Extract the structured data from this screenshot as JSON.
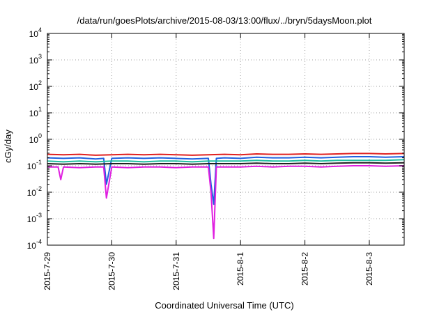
{
  "chart_data": {
    "type": "line",
    "title": "/data/run/goesPlots/archive/2015-08-03/13:00/flux/../bryn/5daysMoon.plot",
    "xlabel": "Coordinated Universal Time (UTC)",
    "ylabel": "cGy/day",
    "yscale": "log",
    "ylim": [
      0.0001,
      10000
    ],
    "xlim": [
      "2015-07-29 00:00",
      "2015-08-03 13:00"
    ],
    "yticks": [
      {
        "value": 0.0001,
        "base": "10",
        "exp": "-4"
      },
      {
        "value": 0.001,
        "base": "10",
        "exp": "-3"
      },
      {
        "value": 0.01,
        "base": "10",
        "exp": "-2"
      },
      {
        "value": 0.1,
        "base": "10",
        "exp": "-1"
      },
      {
        "value": 1,
        "base": "10",
        "exp": "0"
      },
      {
        "value": 10,
        "base": "10",
        "exp": "1"
      },
      {
        "value": 100,
        "base": "10",
        "exp": "2"
      },
      {
        "value": 1000,
        "base": "10",
        "exp": "3"
      },
      {
        "value": 10000,
        "base": "10",
        "exp": "4"
      }
    ],
    "xticks": [
      {
        "value": "2015-07-29 00:00",
        "label": "2015-7-29"
      },
      {
        "value": "2015-07-30 00:00",
        "label": "2015-7-30"
      },
      {
        "value": "2015-07-31 00:00",
        "label": "2015-7-31"
      },
      {
        "value": "2015-08-01 00:00",
        "label": "2015-8-1"
      },
      {
        "value": "2015-08-02 00:00",
        "label": "2015-8-2"
      },
      {
        "value": "2015-08-03 00:00",
        "label": "2015-8-3"
      }
    ],
    "grid": true,
    "legend": "none",
    "series": [
      {
        "color": "#e02020",
        "x": [
          "2015-07-29 00:00",
          "2015-07-29 06:00",
          "2015-07-29 12:00",
          "2015-07-29 18:00",
          "2015-07-30 00:00",
          "2015-07-30 06:00",
          "2015-07-30 12:00",
          "2015-07-30 18:00",
          "2015-07-31 00:00",
          "2015-07-31 06:00",
          "2015-07-31 12:00",
          "2015-07-31 18:00",
          "2015-08-01 00:00",
          "2015-08-01 06:00",
          "2015-08-01 12:00",
          "2015-08-01 18:00",
          "2015-08-02 00:00",
          "2015-08-02 06:00",
          "2015-08-02 12:00",
          "2015-08-02 18:00",
          "2015-08-03 00:00",
          "2015-08-03 06:00",
          "2015-08-03 13:00"
        ],
        "y": [
          0.27,
          0.26,
          0.27,
          0.25,
          0.26,
          0.27,
          0.26,
          0.27,
          0.26,
          0.25,
          0.26,
          0.27,
          0.26,
          0.28,
          0.27,
          0.27,
          0.28,
          0.27,
          0.28,
          0.29,
          0.29,
          0.28,
          0.29
        ]
      },
      {
        "color": "#2060e0",
        "x": [
          "2015-07-29 00:00",
          "2015-07-29 06:00",
          "2015-07-29 12:00",
          "2015-07-29 18:00",
          "2015-07-29 21:00",
          "2015-07-29 22:00",
          "2015-07-30 00:00",
          "2015-07-30 06:00",
          "2015-07-30 12:00",
          "2015-07-30 18:00",
          "2015-07-31 00:00",
          "2015-07-31 06:00",
          "2015-07-31 12:00",
          "2015-07-31 13:00",
          "2015-07-31 14:00",
          "2015-07-31 15:00",
          "2015-07-31 18:00",
          "2015-08-01 00:00",
          "2015-08-01 06:00",
          "2015-08-01 12:00",
          "2015-08-01 18:00",
          "2015-08-02 00:00",
          "2015-08-02 06:00",
          "2015-08-02 12:00",
          "2015-08-02 18:00",
          "2015-08-03 00:00",
          "2015-08-03 06:00",
          "2015-08-03 13:00"
        ],
        "y": [
          0.2,
          0.19,
          0.2,
          0.18,
          0.19,
          0.02,
          0.19,
          0.2,
          0.19,
          0.2,
          0.19,
          0.18,
          0.19,
          0.02,
          0.0035,
          0.19,
          0.2,
          0.19,
          0.21,
          0.2,
          0.2,
          0.21,
          0.2,
          0.21,
          0.22,
          0.22,
          0.21,
          0.22
        ]
      },
      {
        "color": "#20c0a0",
        "x": [
          "2015-07-29 00:00",
          "2015-07-29 06:00",
          "2015-07-29 12:00",
          "2015-07-29 18:00",
          "2015-07-30 00:00",
          "2015-07-30 06:00",
          "2015-07-30 12:00",
          "2015-07-30 18:00",
          "2015-07-31 00:00",
          "2015-07-31 06:00",
          "2015-07-31 12:00",
          "2015-07-31 18:00",
          "2015-08-01 00:00",
          "2015-08-01 06:00",
          "2015-08-01 12:00",
          "2015-08-01 18:00",
          "2015-08-02 00:00",
          "2015-08-02 06:00",
          "2015-08-02 12:00",
          "2015-08-02 18:00",
          "2015-08-03 00:00",
          "2015-08-03 06:00",
          "2015-08-03 13:00"
        ],
        "y": [
          0.15,
          0.14,
          0.15,
          0.14,
          0.15,
          0.15,
          0.14,
          0.15,
          0.15,
          0.14,
          0.15,
          0.15,
          0.15,
          0.16,
          0.15,
          0.15,
          0.16,
          0.15,
          0.16,
          0.16,
          0.16,
          0.16,
          0.17
        ]
      },
      {
        "color": "#202020",
        "x": [
          "2015-07-29 00:00",
          "2015-07-29 06:00",
          "2015-07-29 12:00",
          "2015-07-29 18:00",
          "2015-07-30 00:00",
          "2015-07-30 06:00",
          "2015-07-30 12:00",
          "2015-07-30 18:00",
          "2015-07-31 00:00",
          "2015-07-31 06:00",
          "2015-07-31 12:00",
          "2015-07-31 18:00",
          "2015-08-01 00:00",
          "2015-08-01 06:00",
          "2015-08-01 12:00",
          "2015-08-01 18:00",
          "2015-08-02 00:00",
          "2015-08-02 06:00",
          "2015-08-02 12:00",
          "2015-08-02 18:00",
          "2015-08-03 00:00",
          "2015-08-03 06:00",
          "2015-08-03 13:00"
        ],
        "y": [
          0.12,
          0.115,
          0.12,
          0.115,
          0.12,
          0.12,
          0.115,
          0.12,
          0.12,
          0.115,
          0.12,
          0.12,
          0.12,
          0.125,
          0.12,
          0.12,
          0.125,
          0.12,
          0.125,
          0.13,
          0.13,
          0.125,
          0.13
        ]
      },
      {
        "color": "#e020e0",
        "x": [
          "2015-07-29 00:00",
          "2015-07-29 04:00",
          "2015-07-29 05:00",
          "2015-07-29 06:00",
          "2015-07-29 12:00",
          "2015-07-29 18:00",
          "2015-07-29 21:00",
          "2015-07-29 22:00",
          "2015-07-30 00:00",
          "2015-07-30 06:00",
          "2015-07-30 12:00",
          "2015-07-30 18:00",
          "2015-07-31 00:00",
          "2015-07-31 06:00",
          "2015-07-31 12:00",
          "2015-07-31 13:00",
          "2015-07-31 14:00",
          "2015-07-31 15:00",
          "2015-07-31 18:00",
          "2015-08-01 00:00",
          "2015-08-01 06:00",
          "2015-08-01 12:00",
          "2015-08-01 18:00",
          "2015-08-02 00:00",
          "2015-08-02 06:00",
          "2015-08-02 12:00",
          "2015-08-02 18:00",
          "2015-08-03 00:00",
          "2015-08-03 06:00",
          "2015-08-03 13:00"
        ],
        "y": [
          0.09,
          0.09,
          0.03,
          0.09,
          0.085,
          0.09,
          0.09,
          0.006,
          0.09,
          0.085,
          0.09,
          0.09,
          0.085,
          0.09,
          0.09,
          0.01,
          0.00018,
          0.09,
          0.09,
          0.09,
          0.095,
          0.09,
          0.095,
          0.095,
          0.09,
          0.095,
          0.1,
          0.1,
          0.095,
          0.1
        ]
      }
    ]
  }
}
